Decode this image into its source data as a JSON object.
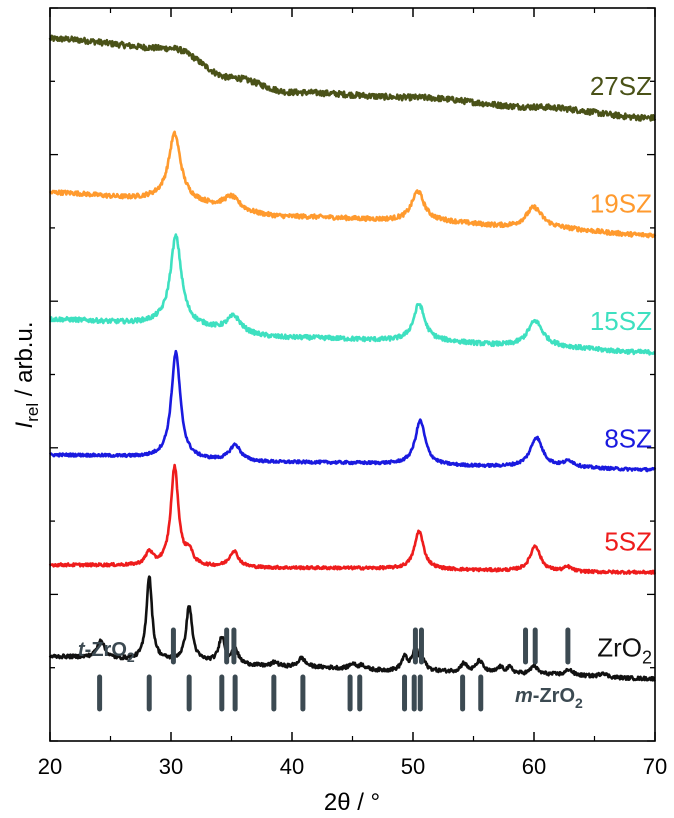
{
  "chart_data": {
    "type": "line",
    "title": "",
    "xlabel": "2θ / °",
    "ylabel_main": "I",
    "ylabel_sub": "rel",
    "ylabel_rest": " / arb.u.",
    "xlim": [
      20,
      70
    ],
    "xticks": [
      20,
      30,
      40,
      50,
      60,
      70
    ],
    "xtick_labels": [
      "20",
      "30",
      "40",
      "50",
      "60",
      "70"
    ],
    "grid": false,
    "series": [
      {
        "name": "27SZ",
        "label_main": "27SZ",
        "label_sub": "",
        "color": "#4a5218",
        "offset": 0.85,
        "baseline": [
          [
            20,
            0.108
          ],
          [
            30,
            0.095
          ],
          [
            35,
            0.055
          ],
          [
            40,
            0.035
          ],
          [
            50,
            0.028
          ],
          [
            60,
            0.015
          ],
          [
            70,
            0.0
          ]
        ],
        "peaks": [],
        "noise": 0.004
      },
      {
        "name": "19SZ",
        "label_main": "19SZ",
        "label_sub": "",
        "color": "#ff9a2e",
        "offset": 0.69,
        "baseline": [
          [
            20,
            0.058
          ],
          [
            28,
            0.05
          ],
          [
            40,
            0.025
          ],
          [
            50,
            0.02
          ],
          [
            60,
            0.01
          ],
          [
            70,
            0.0
          ]
        ],
        "peaks": [
          [
            30.3,
            0.09,
            0.6
          ],
          [
            35.0,
            0.018,
            0.8
          ],
          [
            50.4,
            0.04,
            0.6
          ],
          [
            60.0,
            0.028,
            0.8
          ]
        ],
        "noise": 0.003
      },
      {
        "name": "15SZ",
        "label_main": "15SZ",
        "label_sub": "",
        "color": "#3ee0c0",
        "offset": 0.53,
        "baseline": [
          [
            20,
            0.045
          ],
          [
            28,
            0.04
          ],
          [
            40,
            0.02
          ],
          [
            50,
            0.016
          ],
          [
            60,
            0.008
          ],
          [
            70,
            0.0
          ]
        ],
        "peaks": [
          [
            30.4,
            0.12,
            0.55
          ],
          [
            35.2,
            0.022,
            0.7
          ],
          [
            50.5,
            0.05,
            0.55
          ],
          [
            60.1,
            0.035,
            0.75
          ]
        ],
        "noise": 0.003
      },
      {
        "name": "8SZ",
        "label_main": "8SZ",
        "label_sub": "",
        "color": "#1a1adf",
        "offset": 0.37,
        "baseline": [
          [
            20,
            0.02
          ],
          [
            40,
            0.01
          ],
          [
            60,
            0.004
          ],
          [
            70,
            0.0
          ]
        ],
        "peaks": [
          [
            30.4,
            0.145,
            0.45
          ],
          [
            35.3,
            0.022,
            0.55
          ],
          [
            50.6,
            0.06,
            0.5
          ],
          [
            60.2,
            0.04,
            0.6
          ],
          [
            62.9,
            0.008,
            0.5
          ]
        ],
        "noise": 0.002
      },
      {
        "name": "5SZ",
        "label_main": "5SZ",
        "label_sub": "",
        "color": "#ee1c1c",
        "offset": 0.23,
        "baseline": [
          [
            20,
            0.01
          ],
          [
            40,
            0.006
          ],
          [
            70,
            0.0
          ]
        ],
        "peaks": [
          [
            28.2,
            0.018,
            0.35
          ],
          [
            30.3,
            0.135,
            0.38
          ],
          [
            31.5,
            0.018,
            0.35
          ],
          [
            35.2,
            0.022,
            0.45
          ],
          [
            50.5,
            0.052,
            0.45
          ],
          [
            60.1,
            0.035,
            0.5
          ],
          [
            62.8,
            0.006,
            0.4
          ]
        ],
        "noise": 0.002
      },
      {
        "name": "ZrO2",
        "label_main": "ZrO",
        "label_sub": "2",
        "color": "#111111",
        "offset": 0.085,
        "baseline": [
          [
            20,
            0.03
          ],
          [
            30,
            0.024
          ],
          [
            40,
            0.016
          ],
          [
            50,
            0.01
          ],
          [
            60,
            0.006
          ],
          [
            70,
            0.0
          ]
        ],
        "peaks": [
          [
            24.2,
            0.025,
            0.35
          ],
          [
            28.2,
            0.115,
            0.28
          ],
          [
            31.5,
            0.075,
            0.3
          ],
          [
            34.2,
            0.035,
            0.3
          ],
          [
            35.3,
            0.02,
            0.3
          ],
          [
            38.6,
            0.006,
            0.3
          ],
          [
            40.8,
            0.012,
            0.35
          ],
          [
            45.0,
            0.007,
            0.3
          ],
          [
            45.8,
            0.006,
            0.3
          ],
          [
            49.3,
            0.018,
            0.3
          ],
          [
            50.2,
            0.028,
            0.3
          ],
          [
            50.8,
            0.012,
            0.3
          ],
          [
            54.2,
            0.012,
            0.3
          ],
          [
            55.5,
            0.016,
            0.35
          ],
          [
            57.2,
            0.008,
            0.3
          ],
          [
            58.0,
            0.008,
            0.3
          ],
          [
            60.0,
            0.012,
            0.3
          ],
          [
            62.9,
            0.008,
            0.3
          ],
          [
            65.7,
            0.006,
            0.3
          ]
        ],
        "noise": 0.0025
      }
    ],
    "reference_sets": [
      {
        "name": "t-ZrO2",
        "label_main": "t",
        "label_mid": "-ZrO",
        "label_sub": "2",
        "row": 1,
        "positions": [
          30.2,
          34.6,
          35.2,
          50.2,
          50.7,
          59.3,
          60.1,
          62.8
        ]
      },
      {
        "name": "m-ZrO2",
        "label_main": "m",
        "label_mid": "-ZrO",
        "label_sub": "2",
        "row": 2,
        "positions": [
          24.1,
          28.2,
          31.5,
          34.2,
          35.3,
          38.5,
          40.9,
          44.8,
          45.6,
          49.3,
          50.1,
          50.6,
          54.1,
          55.6
        ]
      }
    ],
    "reference_color": "#3c4a52"
  }
}
